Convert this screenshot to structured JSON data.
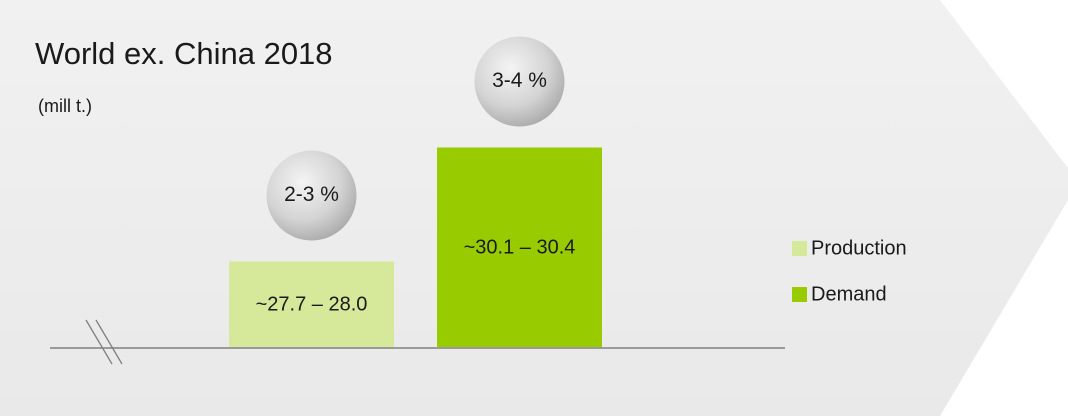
{
  "chart_data": {
    "type": "bar",
    "title": "World ex. China 2018",
    "subtitle": "(mill t.)",
    "categories": [
      "Production",
      "Demand"
    ],
    "values": [
      [
        27.7,
        28.0
      ],
      [
        30.1,
        30.4
      ]
    ],
    "value_labels": [
      "~27.7 – 28.0",
      "~30.1 – 30.4"
    ],
    "growth_labels": [
      "2-3 %",
      "3-4 %"
    ],
    "colors": [
      "#d6e99a",
      "#99cc00"
    ],
    "ylim": [
      26.2,
      31.4
    ],
    "broken_axis": true,
    "legend": "right"
  }
}
